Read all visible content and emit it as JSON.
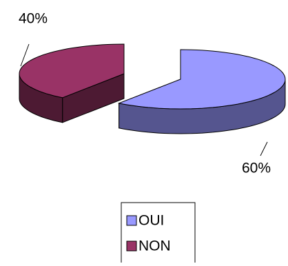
{
  "chart_data": {
    "type": "pie",
    "categories": [
      "OUI",
      "NON"
    ],
    "values": [
      60,
      40
    ],
    "value_labels": [
      "60%",
      "40%"
    ],
    "colors": [
      "#9999ff",
      "#993366"
    ],
    "side_colors": [
      "#55558f",
      "#4d1a33"
    ],
    "legend": "bottom"
  }
}
